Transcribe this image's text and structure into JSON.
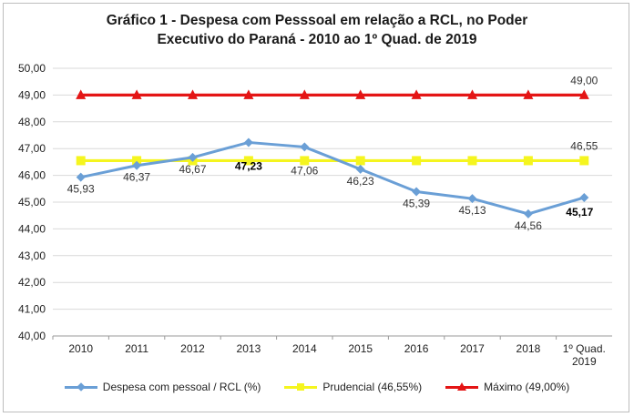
{
  "chart_data": {
    "type": "line",
    "title_lines": [
      "Gráfico 1 - Despesa com Pesssoal em relação a RCL, no Poder",
      "Executivo do Paraná - 2010 ao 1º Quad. de 2019"
    ],
    "categories": [
      "2010",
      "2011",
      "2012",
      "2013",
      "2014",
      "2015",
      "2016",
      "2017",
      "2018",
      "1º Quad. 2019"
    ],
    "ylim": [
      40,
      50
    ],
    "yticks": [
      "40,00",
      "41,00",
      "42,00",
      "43,00",
      "44,00",
      "45,00",
      "46,00",
      "47,00",
      "48,00",
      "49,00",
      "50,00"
    ],
    "grid": true,
    "legend_position": "bottom",
    "series": [
      {
        "name": "Despesa com pessoal / RCL (%)",
        "color": "#6a9fd6",
        "marker": "diamond",
        "values": [
          45.93,
          46.37,
          46.67,
          47.23,
          47.06,
          46.23,
          45.39,
          45.13,
          44.56,
          45.17
        ],
        "labels": [
          "45,93",
          "46,37",
          "46,67",
          "47,23",
          "47,06",
          "46,23",
          "45,39",
          "45,13",
          "44,56",
          "45,17"
        ]
      },
      {
        "name": "Prudencial (46,55%)",
        "color": "#f5f51f",
        "marker": "square",
        "values": [
          46.55,
          46.55,
          46.55,
          46.55,
          46.55,
          46.55,
          46.55,
          46.55,
          46.55,
          46.55
        ],
        "labels": [
          "",
          "",
          "",
          "",
          "",
          "",
          "",
          "",
          "",
          "46,55"
        ]
      },
      {
        "name": "Máximo (49,00%)",
        "color": "#e41515",
        "marker": "triangle",
        "values": [
          49,
          49,
          49,
          49,
          49,
          49,
          49,
          49,
          49,
          49
        ],
        "labels": [
          "",
          "",
          "",
          "",
          "",
          "",
          "",
          "",
          "",
          "49,00"
        ]
      }
    ]
  }
}
